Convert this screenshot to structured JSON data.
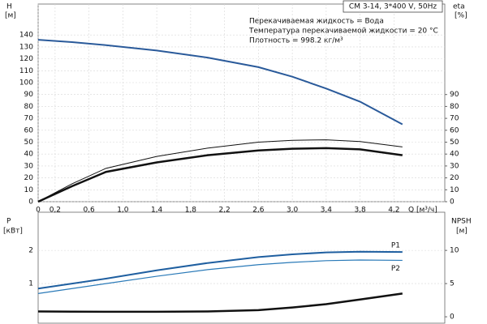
{
  "chart_data": [
    {
      "type": "line",
      "model": "CM 3-14, 3*400 V, 50Hz",
      "notes": [
        "Перекачиваемая жидкость = Вода",
        "Температура перекачиваемой жидкости = 20 °C",
        "Плотность = 998.2 кг/м³"
      ],
      "ylabel": "H",
      "yunit": "[м]",
      "y2label": "eta",
      "y2unit": "[%]",
      "xlabel": "Q [м³/ч]",
      "x": [
        0,
        0.4,
        0.8,
        1.4,
        2.0,
        2.6,
        3.0,
        3.4,
        3.8,
        4.3
      ],
      "xlim": [
        0,
        4.8
      ],
      "xticks": [
        0,
        {
          "value": 0.2,
          "label": "0,2"
        },
        {
          "value": 0.6,
          "label": "0,6"
        },
        {
          "value": 1.0,
          "label": "1,0"
        },
        {
          "value": 1.4,
          "label": "1,4"
        },
        {
          "value": 1.8,
          "label": "1,8"
        },
        {
          "value": 2.2,
          "label": "2,2"
        },
        {
          "value": 2.6,
          "label": "2,6"
        },
        {
          "value": 3.0,
          "label": "3,0"
        },
        {
          "value": 3.4,
          "label": "3,4"
        },
        {
          "value": 3.8,
          "label": "3,8"
        },
        {
          "value": 4.2,
          "label": "4,2"
        }
      ],
      "ylim": [
        0,
        166
      ],
      "yticks": [
        0,
        10,
        20,
        30,
        40,
        50,
        60,
        70,
        80,
        90,
        100,
        110,
        120,
        130,
        140
      ],
      "y2lim": [
        0,
        166
      ],
      "y2ticks": [
        0,
        10,
        20,
        30,
        40,
        50,
        60,
        70,
        80,
        90
      ],
      "grid": true,
      "series": [
        {
          "color": "#2a5a9a",
          "linewidth": 2,
          "values": [
            136,
            134,
            131.5,
            127,
            121,
            113,
            105,
            95,
            84,
            65
          ]
        },
        {
          "color": "#111111",
          "linewidth": 1,
          "axis": "y2",
          "values": [
            0,
            15,
            28,
            38,
            45,
            50,
            51.5,
            52,
            50.5,
            46
          ]
        },
        {
          "color": "#111111",
          "linewidth": 2.5,
          "axis": "y2",
          "values": [
            0,
            13,
            25,
            33,
            39,
            43,
            44.5,
            45,
            44,
            39
          ]
        }
      ]
    },
    {
      "type": "line",
      "ylabel": "P",
      "yunit": "[кВт]",
      "y2label": "NPSH",
      "y2unit": "[м]",
      "x": [
        0,
        0.4,
        0.8,
        1.4,
        2.0,
        2.6,
        3.0,
        3.4,
        3.8,
        4.3
      ],
      "xlim": [
        0,
        4.8
      ],
      "ylim": [
        -0.12,
        3.15
      ],
      "yticks": [
        1,
        2
      ],
      "y2lim": [
        -0.6,
        15.75
      ],
      "y2ticks": [
        0,
        5,
        10
      ],
      "grid": true,
      "series": [
        {
          "name": "P1",
          "color": "#1f5fa0",
          "linewidth": 2,
          "values": [
            0.85,
            1.0,
            1.15,
            1.4,
            1.62,
            1.8,
            1.88,
            1.94,
            1.96,
            1.95
          ]
        },
        {
          "name": "P2",
          "color": "#2a7ab8",
          "linewidth": 1.2,
          "values": [
            0.7,
            0.85,
            1.0,
            1.22,
            1.42,
            1.57,
            1.64,
            1.69,
            1.71,
            1.7
          ]
        },
        {
          "color": "#111111",
          "linewidth": 2.5,
          "axis": "y2",
          "values": [
            0.8,
            0.78,
            0.75,
            0.75,
            0.8,
            1.0,
            1.4,
            1.9,
            2.6,
            3.5
          ]
        }
      ]
    }
  ]
}
